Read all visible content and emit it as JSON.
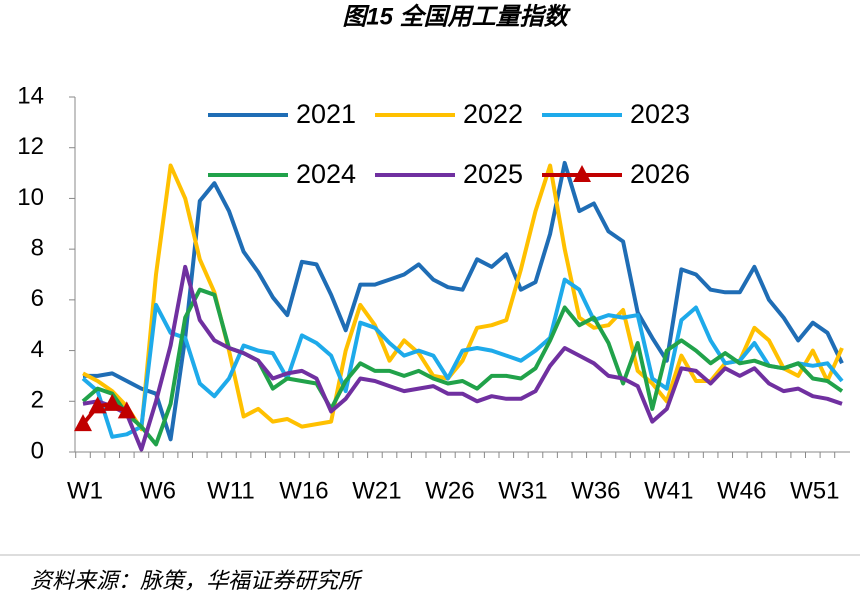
{
  "chart_data": {
    "type": "line",
    "title": "图15 全国用工量指数",
    "source": "资料来源：脉策，华福证券研究所",
    "categories": [
      "W1",
      null,
      null,
      null,
      null,
      "W6",
      null,
      null,
      null,
      null,
      "W11",
      null,
      null,
      null,
      null,
      "W16",
      null,
      null,
      null,
      null,
      "W21",
      null,
      null,
      null,
      null,
      "W26",
      null,
      null,
      null,
      null,
      "W31",
      null,
      null,
      null,
      null,
      "W36",
      null,
      null,
      null,
      null,
      "W41",
      null,
      null,
      null,
      null,
      "W46",
      null,
      null,
      null,
      null,
      "W51",
      null,
      null
    ],
    "ylim": [
      0,
      14
    ],
    "yticks": [
      0,
      2,
      4,
      6,
      8,
      10,
      12,
      14
    ],
    "grid": false,
    "series": [
      {
        "name": "2021",
        "color": "#1f6db5",
        "values": [
          3.0,
          3.0,
          3.1,
          2.8,
          2.5,
          2.3,
          0.5,
          4.5,
          9.9,
          10.6,
          9.5,
          7.9,
          7.1,
          6.1,
          5.4,
          7.5,
          7.4,
          6.2,
          4.8,
          6.6,
          6.6,
          6.8,
          7.0,
          7.4,
          6.8,
          6.5,
          6.4,
          7.6,
          7.3,
          7.8,
          6.4,
          6.7,
          8.6,
          11.4,
          9.5,
          9.8,
          8.7,
          8.3,
          5.5,
          4.5,
          3.6,
          7.2,
          7.0,
          6.4,
          6.3,
          6.3,
          7.3,
          6.0,
          5.3,
          4.4,
          5.1,
          4.7,
          3.5
        ]
      },
      {
        "name": "2022",
        "color": "#ffc000",
        "values": [
          3.1,
          2.8,
          2.4,
          1.8,
          0.9,
          7.0,
          11.3,
          10.0,
          7.6,
          6.3,
          4.0,
          1.4,
          1.7,
          1.2,
          1.3,
          1.0,
          1.1,
          1.2,
          4.0,
          5.8,
          5.0,
          3.6,
          4.4,
          3.9,
          3.0,
          2.9,
          3.6,
          4.9,
          5.0,
          5.2,
          7.2,
          9.5,
          11.3,
          8.0,
          5.3,
          4.9,
          5.0,
          5.6,
          3.2,
          2.7,
          2.0,
          3.8,
          2.8,
          2.8,
          3.5,
          3.6,
          4.9,
          4.4,
          3.3,
          3.0,
          4.0,
          2.8,
          4.1
        ]
      },
      {
        "name": "2023",
        "color": "#1eaaea",
        "values": [
          2.9,
          2.4,
          0.6,
          0.7,
          1.0,
          5.8,
          4.7,
          4.5,
          2.7,
          2.2,
          2.9,
          4.2,
          4.0,
          3.9,
          2.9,
          4.6,
          4.3,
          3.8,
          2.4,
          5.1,
          4.9,
          4.3,
          3.8,
          4.0,
          3.8,
          2.9,
          4.0,
          4.1,
          4.0,
          3.8,
          3.6,
          4.0,
          4.5,
          6.8,
          6.4,
          5.2,
          5.4,
          5.3,
          5.4,
          2.9,
          2.5,
          5.2,
          5.7,
          4.4,
          3.5,
          3.6,
          4.3,
          3.4,
          3.3,
          3.5,
          3.4,
          3.5,
          2.8
        ]
      },
      {
        "name": "2024",
        "color": "#21a24a",
        "values": [
          2.0,
          2.5,
          2.3,
          1.5,
          1.0,
          0.3,
          1.9,
          5.3,
          6.4,
          6.2,
          4.1,
          3.9,
          3.6,
          2.5,
          2.9,
          2.8,
          2.7,
          1.7,
          2.8,
          3.5,
          3.2,
          3.2,
          3.0,
          3.2,
          2.9,
          2.7,
          2.8,
          2.5,
          3.0,
          3.0,
          2.9,
          3.3,
          4.4,
          5.7,
          5.0,
          5.3,
          4.3,
          2.7,
          4.3,
          1.7,
          4.0,
          4.4,
          4.0,
          3.5,
          3.9,
          3.5,
          3.6,
          3.4,
          3.3,
          3.5,
          2.9,
          2.8,
          2.4
        ]
      },
      {
        "name": "2025",
        "color": "#7030a0",
        "values": [
          1.9,
          2.0,
          1.8,
          1.5,
          0.1,
          2.0,
          4.2,
          7.3,
          5.2,
          4.4,
          4.1,
          3.9,
          3.6,
          2.9,
          3.1,
          3.2,
          2.9,
          1.6,
          2.1,
          2.9,
          2.8,
          2.6,
          2.4,
          2.5,
          2.6,
          2.3,
          2.3,
          2.0,
          2.2,
          2.1,
          2.1,
          2.4,
          3.4,
          4.1,
          3.8,
          3.5,
          3.0,
          2.9,
          2.6,
          1.2,
          1.7,
          3.3,
          3.2,
          2.7,
          3.3,
          3.0,
          3.3,
          2.7,
          2.4,
          2.5,
          2.2,
          2.1,
          1.9
        ]
      },
      {
        "name": "2026",
        "color": "#c00000",
        "marker": "triangle",
        "values": [
          1.1,
          1.8,
          1.9,
          1.6,
          null,
          null,
          null,
          null,
          null,
          null,
          null,
          null,
          null,
          null,
          null,
          null,
          null,
          null,
          null,
          null,
          null,
          null,
          null,
          null,
          null,
          null,
          null,
          null,
          null,
          null,
          null,
          null,
          null,
          null,
          null,
          null,
          null,
          null,
          null,
          null,
          null,
          null,
          null,
          null,
          null,
          null,
          null,
          null,
          null,
          null,
          null,
          null,
          null
        ]
      }
    ]
  }
}
